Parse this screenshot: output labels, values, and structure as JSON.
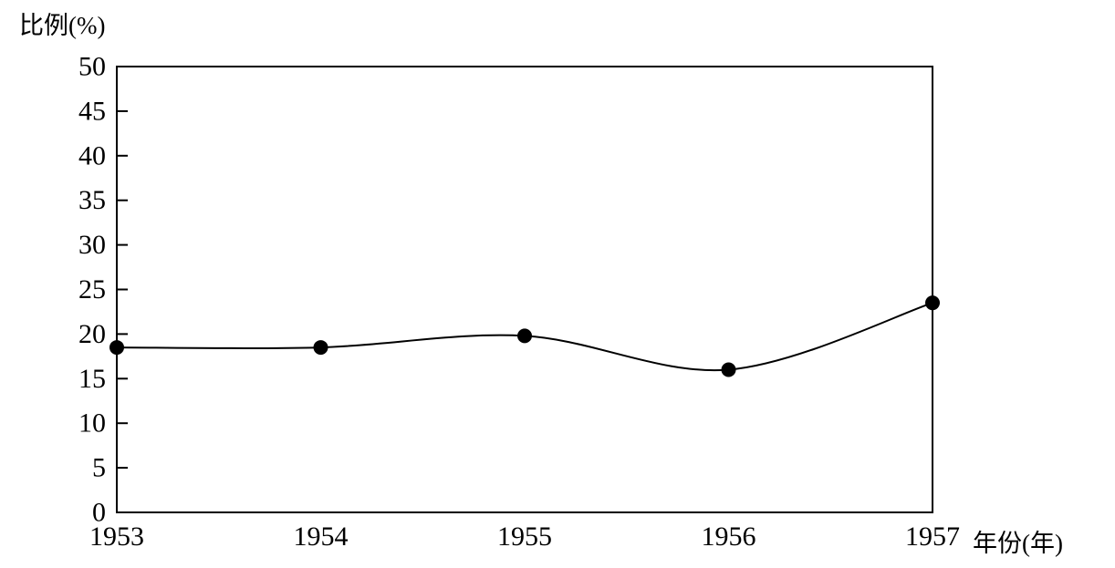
{
  "chart_data": {
    "type": "line",
    "title": "",
    "ylabel": "比例(%)",
    "xlabel": "年份(年)",
    "categories": [
      "1953",
      "1954",
      "1955",
      "1956",
      "1957"
    ],
    "series": [
      {
        "name": "比例",
        "values": [
          18.5,
          18.5,
          19.8,
          16,
          23.5
        ]
      }
    ],
    "ylim": [
      0,
      50
    ],
    "yticks": [
      0,
      5,
      10,
      15,
      20,
      25,
      30,
      35,
      40,
      45,
      50
    ],
    "grid": false,
    "legend": "none",
    "smooth": true,
    "marker": "filled-circle",
    "line_color": "#000000",
    "marker_color": "#000000",
    "axis_color": "#000000",
    "background_color": "#ffffff"
  }
}
